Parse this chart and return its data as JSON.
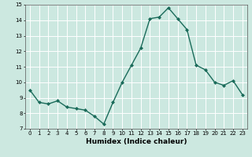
{
  "x": [
    0,
    1,
    2,
    3,
    4,
    5,
    6,
    7,
    8,
    9,
    10,
    11,
    12,
    13,
    14,
    15,
    16,
    17,
    18,
    19,
    20,
    21,
    22,
    23
  ],
  "y": [
    9.5,
    8.7,
    8.6,
    8.8,
    8.4,
    8.3,
    8.2,
    7.8,
    7.3,
    8.7,
    10.0,
    11.1,
    12.2,
    14.1,
    14.2,
    14.8,
    14.1,
    13.4,
    11.1,
    10.8,
    10.0,
    9.8,
    10.1,
    9.2
  ],
  "xlabel": "Humidex (Indice chaleur)",
  "ylim": [
    7,
    15
  ],
  "xlim": [
    -0.5,
    23.5
  ],
  "yticks": [
    7,
    8,
    9,
    10,
    11,
    12,
    13,
    14,
    15
  ],
  "xticks": [
    0,
    1,
    2,
    3,
    4,
    5,
    6,
    7,
    8,
    9,
    10,
    11,
    12,
    13,
    14,
    15,
    16,
    17,
    18,
    19,
    20,
    21,
    22,
    23
  ],
  "line_color": "#1a6b5a",
  "marker": "D",
  "marker_size": 2.0,
  "bg_color": "#cce8e0",
  "grid_color": "#ffffff",
  "line_width": 1.0,
  "tick_fontsize": 5.0,
  "xlabel_fontsize": 6.5
}
